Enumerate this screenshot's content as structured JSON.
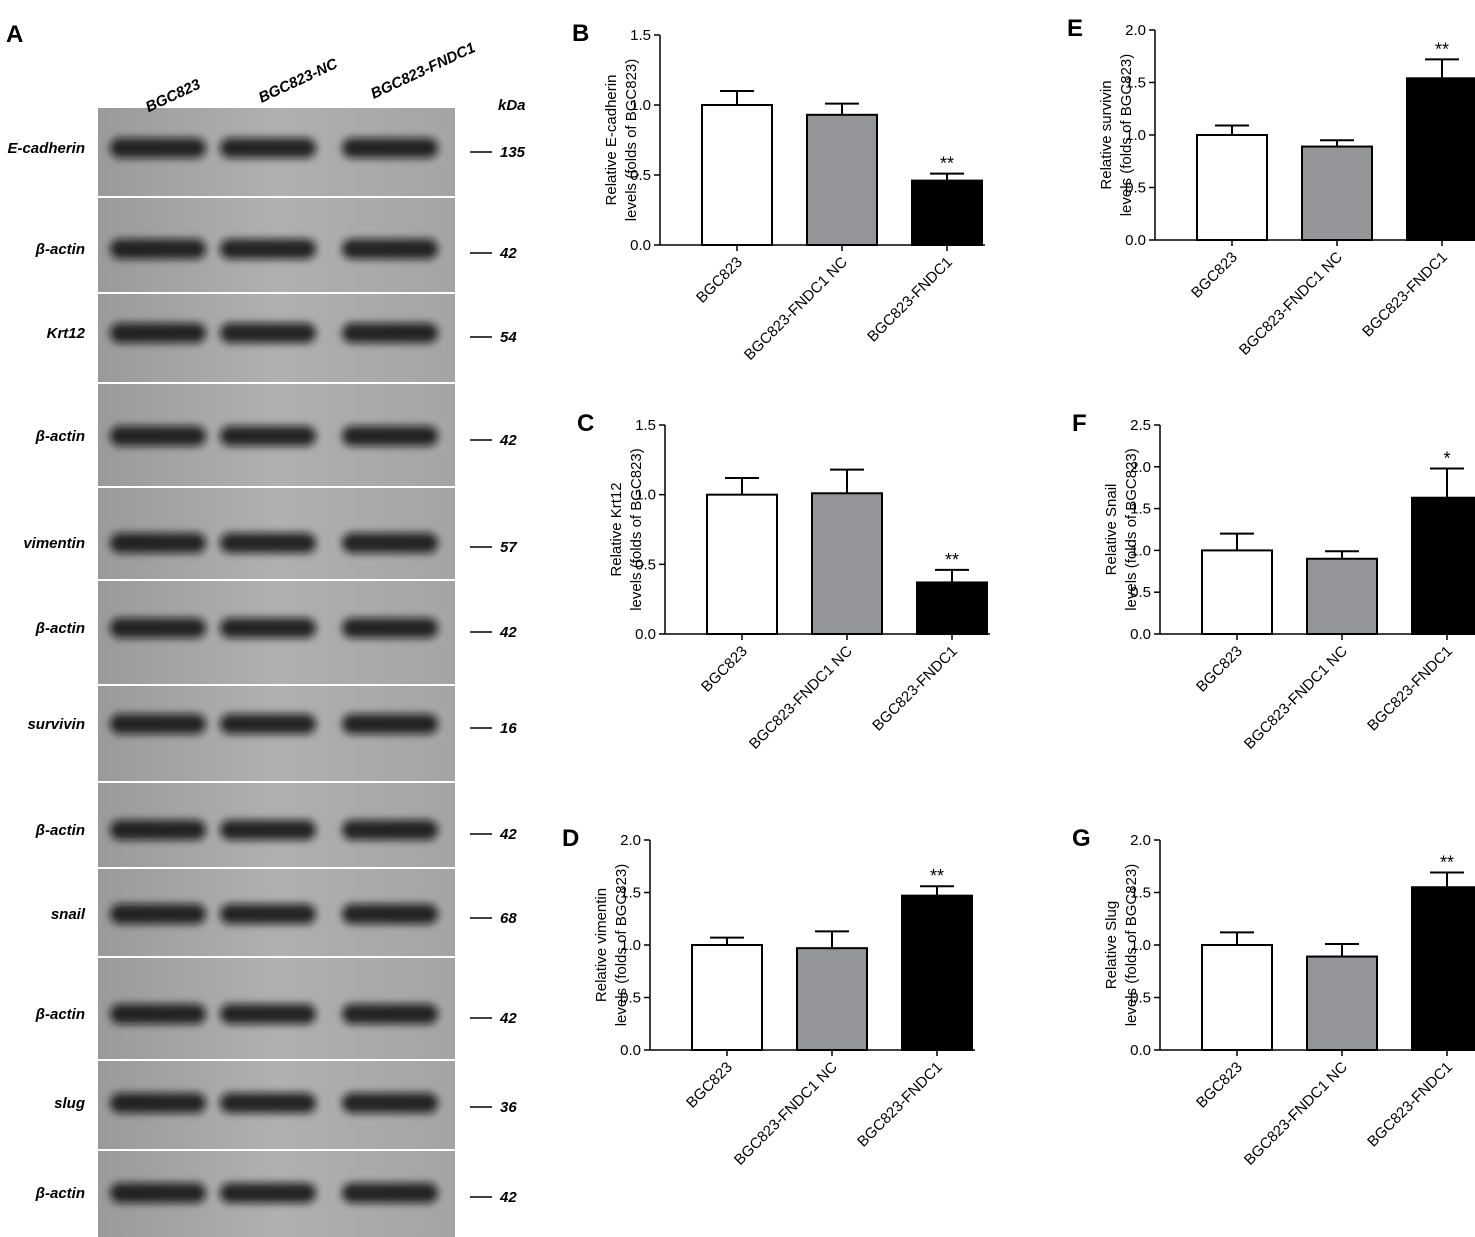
{
  "blot": {
    "label": "A",
    "columns": [
      "BGC823",
      "BGC823-NC",
      "BGC823-FNDC1"
    ],
    "unit": "kDa",
    "rows": [
      {
        "protein": "E-cadherin",
        "kda": 135
      },
      {
        "protein": "β-actin",
        "kda": 42
      },
      {
        "protein": "Krt12",
        "kda": 54
      },
      {
        "protein": "β-actin",
        "kda": 42
      },
      {
        "protein": "vimentin",
        "kda": 57
      },
      {
        "protein": "β-actin",
        "kda": 42
      },
      {
        "protein": "survivin",
        "kda": 16
      },
      {
        "protein": "β-actin",
        "kda": 42
      },
      {
        "protein": "snail",
        "kda": 68
      },
      {
        "protein": "β-actin",
        "kda": 42
      },
      {
        "protein": "slug",
        "kda": 36
      },
      {
        "protein": "β-actin",
        "kda": 42
      }
    ]
  },
  "chart_data": [
    {
      "type": "bar",
      "label": "B",
      "ylabel": [
        "Relative  E-cadherin",
        "levels (folds of BGC823)"
      ],
      "categories": [
        "BGC823",
        "BGC823-FNDC1 NC",
        "BGC823-FNDC1"
      ],
      "values": [
        1.0,
        0.93,
        0.46
      ],
      "errors": [
        0.1,
        0.08,
        0.05
      ],
      "colors": [
        "#ffffff",
        "#939598",
        "#000000"
      ],
      "annotations": [
        null,
        null,
        "**"
      ],
      "ylim": [
        0,
        1.5
      ],
      "yticks": [
        {
          "value": 0,
          "label": "0.0"
        },
        0.5,
        {
          "value": 1,
          "label": "1.0"
        },
        1.5
      ]
    },
    {
      "type": "bar",
      "label": "C",
      "ylabel": [
        "Relative  Krt12",
        "levels (folds of BGC823)"
      ],
      "categories": [
        "BGC823",
        "BGC823-FNDC1 NC",
        "BGC823-FNDC1"
      ],
      "values": [
        1.0,
        1.01,
        0.37
      ],
      "errors": [
        0.12,
        0.17,
        0.09
      ],
      "colors": [
        "#ffffff",
        "#939598",
        "#000000"
      ],
      "annotations": [
        null,
        null,
        "**"
      ],
      "ylim": [
        0,
        1.5
      ],
      "yticks": [
        {
          "value": 0,
          "label": "0.0"
        },
        0.5,
        {
          "value": 1,
          "label": "1.0"
        },
        1.5
      ]
    },
    {
      "type": "bar",
      "label": "D",
      "ylabel": [
        "Relative  vimentin",
        "levels (folds of BGC823)"
      ],
      "categories": [
        "BGC823",
        "BGC823-FNDC1 NC",
        "BGC823-FNDC1"
      ],
      "values": [
        1.0,
        0.97,
        1.47
      ],
      "errors": [
        0.07,
        0.16,
        0.09
      ],
      "colors": [
        "#ffffff",
        "#939598",
        "#000000"
      ],
      "annotations": [
        null,
        null,
        "**"
      ],
      "ylim": [
        0,
        2
      ],
      "yticks": [
        {
          "value": 0,
          "label": "0.0"
        },
        0.5,
        {
          "value": 1,
          "label": "1.0"
        },
        1.5,
        {
          "value": 2,
          "label": "2.0"
        }
      ]
    },
    {
      "type": "bar",
      "label": "E",
      "ylabel": [
        "Relative  survivin",
        "levels (folds of BGC823)"
      ],
      "categories": [
        "BGC823",
        "BGC823-FNDC1 NC",
        "BGC823-FNDC1"
      ],
      "values": [
        1.0,
        0.89,
        1.54
      ],
      "errors": [
        0.09,
        0.06,
        0.18
      ],
      "colors": [
        "#ffffff",
        "#939598",
        "#000000"
      ],
      "annotations": [
        null,
        null,
        "**"
      ],
      "ylim": [
        0,
        2
      ],
      "yticks": [
        {
          "value": 0,
          "label": "0.0"
        },
        0.5,
        {
          "value": 1,
          "label": "1.0"
        },
        1.5,
        {
          "value": 2,
          "label": "2.0"
        }
      ]
    },
    {
      "type": "bar",
      "label": "F",
      "ylabel": [
        "Relative  Snail",
        "levels (folds of BGC823)"
      ],
      "categories": [
        "BGC823",
        "BGC823-FNDC1 NC",
        "BGC823-FNDC1"
      ],
      "values": [
        1.0,
        0.9,
        1.63
      ],
      "errors": [
        0.2,
        0.09,
        0.35
      ],
      "colors": [
        "#ffffff",
        "#939598",
        "#000000"
      ],
      "annotations": [
        null,
        null,
        "*"
      ],
      "ylim": [
        0,
        2.5
      ],
      "yticks": [
        {
          "value": 0,
          "label": "0.0"
        },
        0.5,
        {
          "value": 1,
          "label": "1.0"
        },
        1.5,
        {
          "value": 2,
          "label": "2.0"
        },
        2.5
      ]
    },
    {
      "type": "bar",
      "label": "G",
      "ylabel": [
        "Relative  Slug",
        "levels (folds of BGC823)"
      ],
      "categories": [
        "BGC823",
        "BGC823-FNDC1 NC",
        "BGC823-FNDC1"
      ],
      "values": [
        1.0,
        0.89,
        1.55
      ],
      "errors": [
        0.12,
        0.12,
        0.14
      ],
      "colors": [
        "#ffffff",
        "#939598",
        "#000000"
      ],
      "annotations": [
        null,
        null,
        "**"
      ],
      "ylim": [
        0,
        2
      ],
      "yticks": [
        {
          "value": 0,
          "label": "0.0"
        },
        0.5,
        {
          "value": 1,
          "label": "1.0"
        },
        1.5,
        {
          "value": 2,
          "label": "2.0"
        }
      ]
    }
  ]
}
